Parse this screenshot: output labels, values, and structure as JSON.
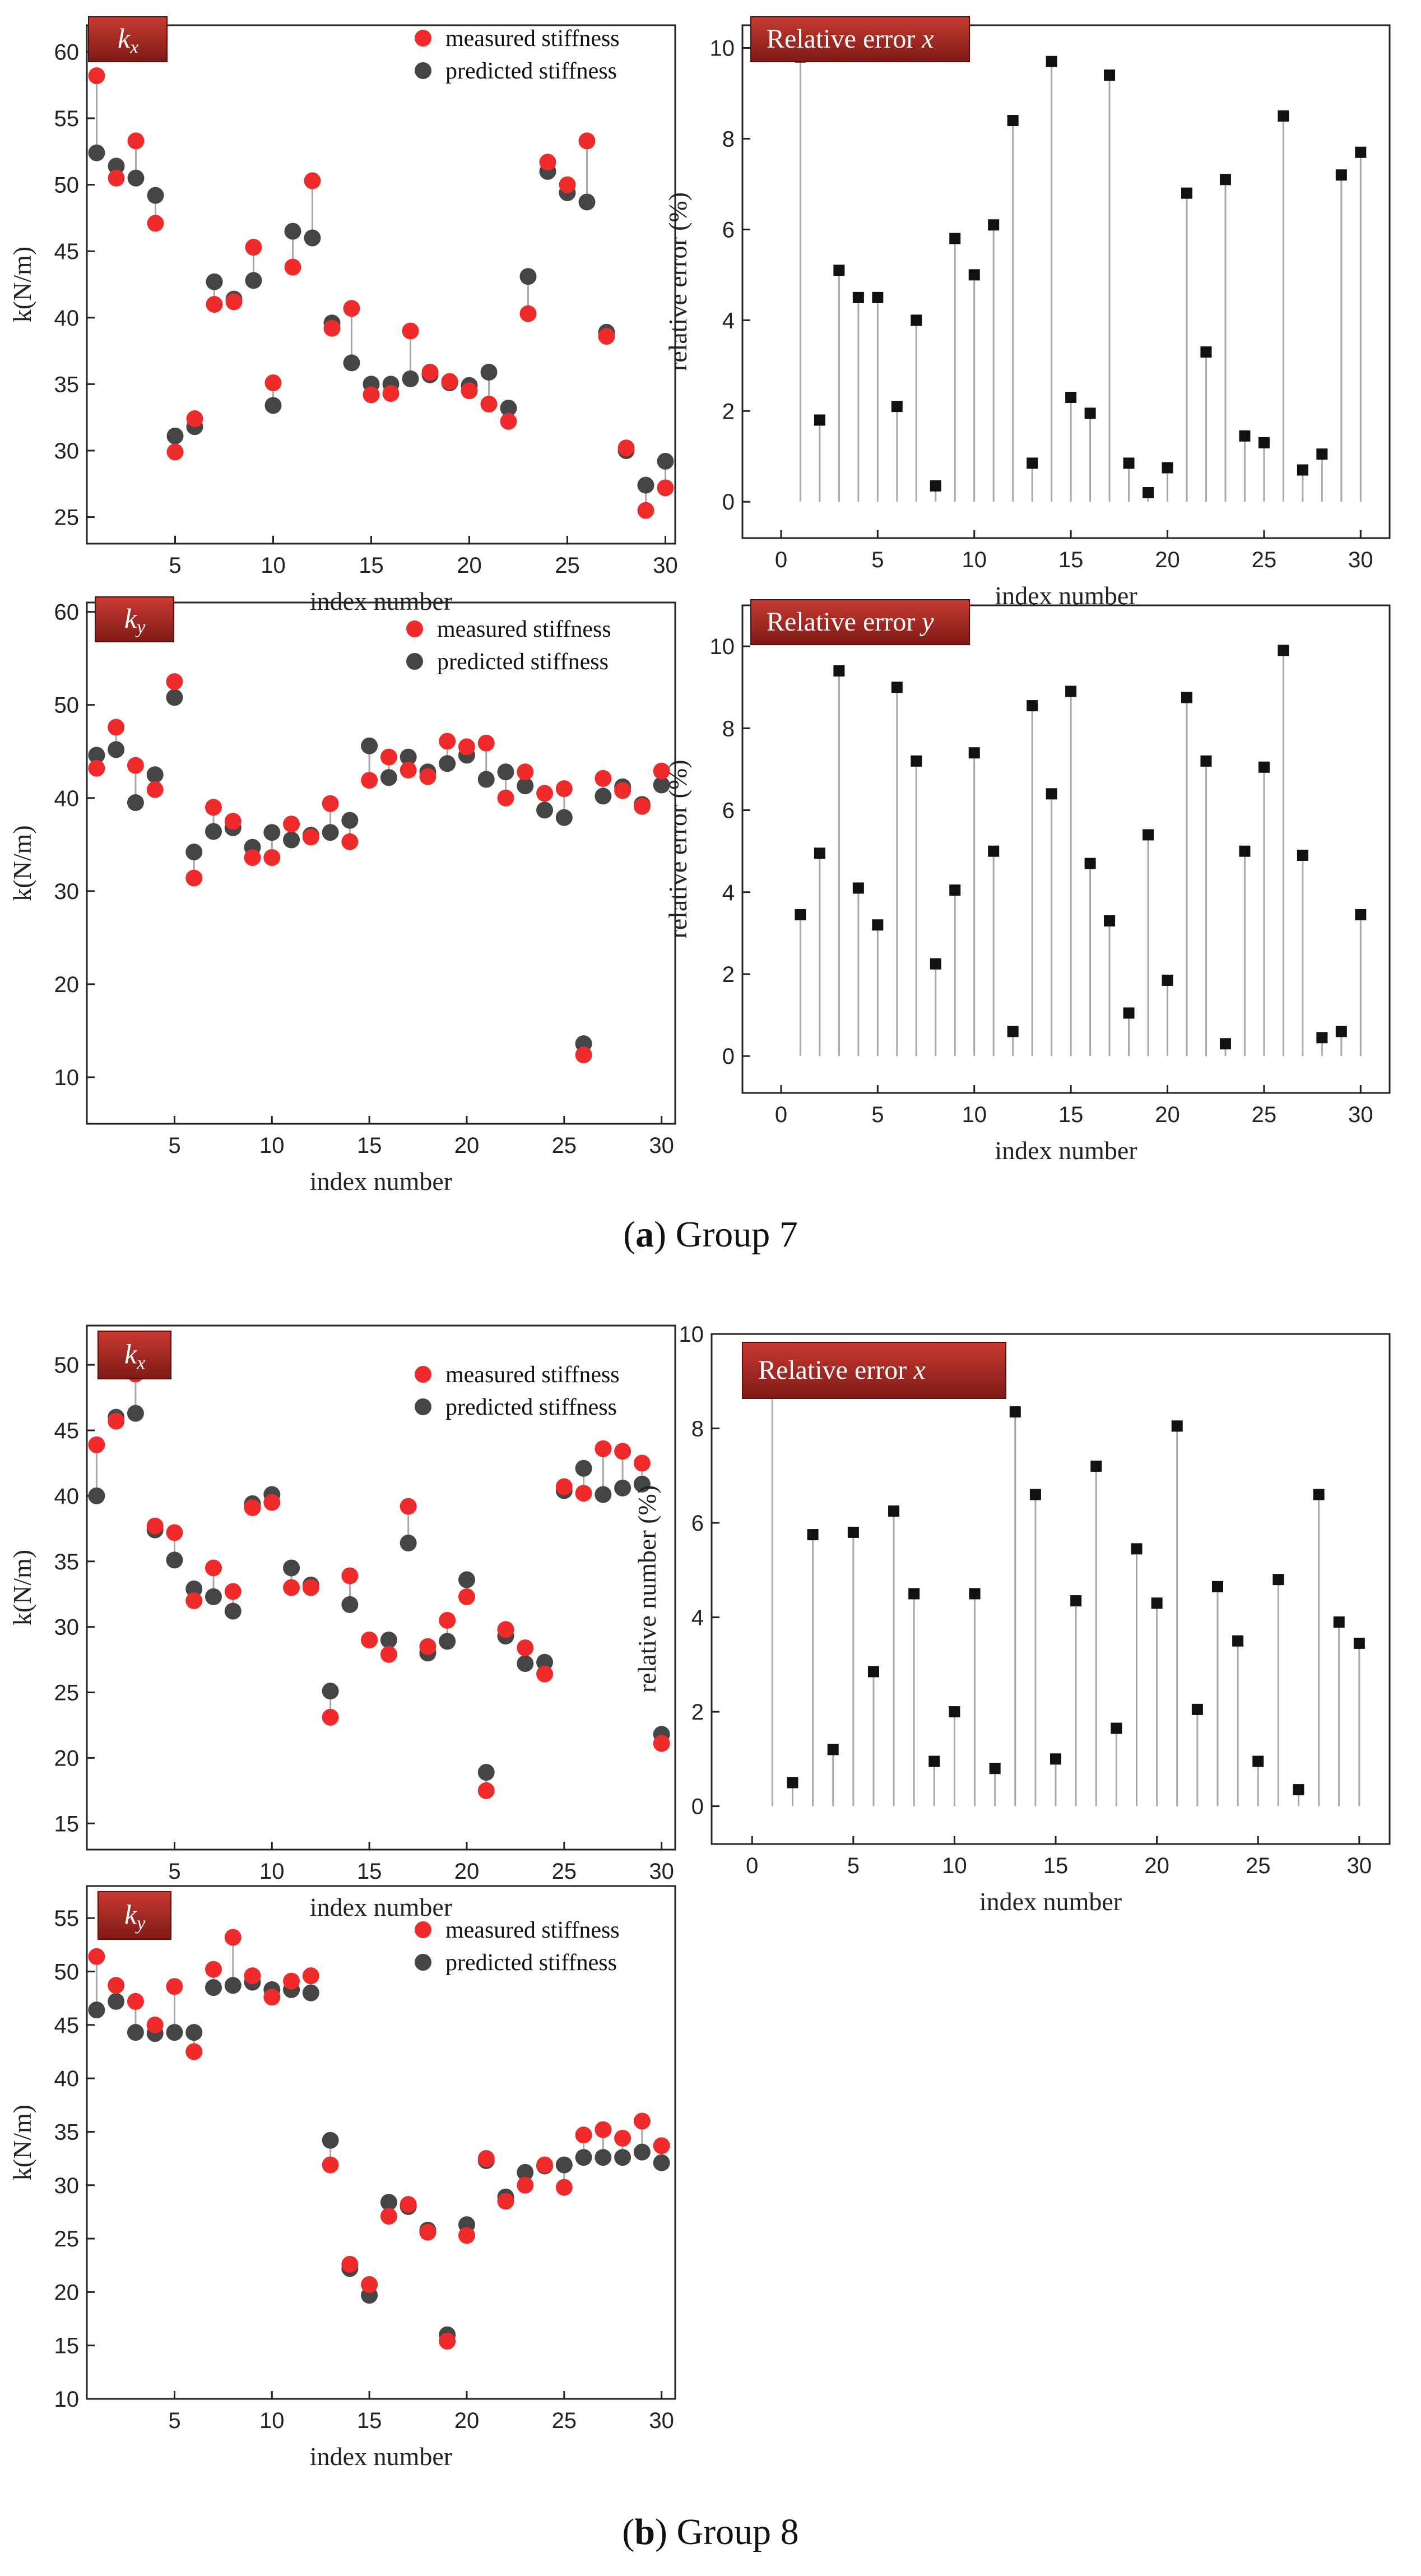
{
  "captions": {
    "a_label": "a",
    "a_text": "Group 7",
    "b_label": "b",
    "b_text": "Group 8"
  },
  "colors": {
    "measured": "#ee2a2a",
    "predicted": "#454545",
    "badge_start": "#c83a32",
    "badge_end": "#7e1a16",
    "stem": "#a9a9a9",
    "axis": "#222222"
  },
  "chart_data": [
    {
      "type": "scatter",
      "panel": "group7-kx-stiffness",
      "badge": "kx",
      "badge_main": "k",
      "badge_sub": "x",
      "title": "",
      "xlabel": "index number",
      "ylabel": "k(N/m)",
      "xlim": [
        0.5,
        30.5
      ],
      "ylim": [
        23,
        62
      ],
      "xticks": [
        5,
        10,
        15,
        20,
        25,
        30
      ],
      "yticks": [
        25,
        30,
        35,
        40,
        45,
        50,
        55,
        60
      ],
      "legend": [
        "measured stiffness",
        "predicted stiffness"
      ],
      "x": [
        1,
        2,
        3,
        4,
        5,
        6,
        7,
        8,
        9,
        10,
        11,
        12,
        13,
        14,
        15,
        16,
        17,
        18,
        19,
        20,
        21,
        22,
        23,
        24,
        25,
        26,
        27,
        28,
        29,
        30
      ],
      "series": [
        {
          "name": "measured stiffness",
          "values": [
            58.2,
            50.5,
            53.3,
            47.1,
            29.9,
            32.4,
            41.0,
            41.2,
            45.3,
            35.1,
            43.8,
            50.3,
            39.2,
            40.7,
            34.2,
            34.3,
            39.0,
            35.9,
            35.2,
            34.5,
            33.5,
            32.2,
            40.3,
            51.7,
            50.0,
            53.3,
            38.6,
            30.2,
            25.5,
            27.2
          ]
        },
        {
          "name": "predicted stiffness",
          "values": [
            52.4,
            51.4,
            50.5,
            49.2,
            31.1,
            31.8,
            42.7,
            41.4,
            42.8,
            33.4,
            46.5,
            46.0,
            39.6,
            36.6,
            35.0,
            35.0,
            35.4,
            35.7,
            35.1,
            34.9,
            35.9,
            33.2,
            43.1,
            51.0,
            49.4,
            48.7,
            38.9,
            30.0,
            27.4,
            29.2
          ]
        }
      ]
    },
    {
      "type": "stem",
      "panel": "group7-relative-error-x",
      "badge": "Relative error x",
      "badge_main": "Relative error ",
      "badge_sub": "x",
      "title": "",
      "xlabel": "index number",
      "ylabel": "relative error (%)",
      "xlim": [
        -2,
        31.5
      ],
      "ylim": [
        -0.8,
        10.5
      ],
      "xticks": [
        0,
        5,
        10,
        15,
        20,
        25,
        30
      ],
      "yticks": [
        0,
        2,
        4,
        6,
        8,
        10
      ],
      "x": [
        1,
        2,
        3,
        4,
        5,
        6,
        7,
        8,
        9,
        10,
        11,
        12,
        13,
        14,
        15,
        16,
        17,
        18,
        19,
        20,
        21,
        22,
        23,
        24,
        25,
        26,
        27,
        28,
        29,
        30
      ],
      "values": [
        9.8,
        1.8,
        5.1,
        4.5,
        4.5,
        2.1,
        4.0,
        0.35,
        5.8,
        5.0,
        6.1,
        8.4,
        0.85,
        9.7,
        2.3,
        1.95,
        9.4,
        0.85,
        0.2,
        0.75,
        6.8,
        3.3,
        7.1,
        1.45,
        1.3,
        8.5,
        0.7,
        1.05,
        7.2,
        7.7
      ]
    },
    {
      "type": "scatter",
      "panel": "group7-ky-stiffness",
      "badge": "ky",
      "badge_main": "k",
      "badge_sub": "y",
      "title": "",
      "xlabel": "index number",
      "ylabel": "k(N/m)",
      "xlim": [
        0.5,
        30.7
      ],
      "ylim": [
        5,
        61
      ],
      "xticks": [
        5,
        10,
        15,
        20,
        25,
        30
      ],
      "yticks": [
        10,
        20,
        30,
        40,
        50,
        60
      ],
      "legend": [
        "measured stiffness",
        "predicted stiffness"
      ],
      "x": [
        1,
        2,
        3,
        4,
        5,
        6,
        7,
        8,
        9,
        10,
        11,
        12,
        13,
        14,
        15,
        16,
        17,
        18,
        19,
        20,
        21,
        22,
        23,
        24,
        25,
        26,
        27,
        28,
        29,
        30
      ],
      "series": [
        {
          "name": "measured stiffness",
          "values": [
            43.2,
            47.6,
            43.5,
            40.9,
            52.5,
            31.4,
            39.0,
            37.5,
            33.6,
            33.6,
            37.2,
            35.8,
            39.4,
            35.3,
            41.9,
            44.4,
            43.0,
            42.3,
            46.1,
            45.5,
            45.9,
            40.0,
            42.8,
            40.5,
            41.0,
            12.4,
            42.1,
            40.8,
            39.1,
            42.9
          ]
        },
        {
          "name": "predicted stiffness",
          "values": [
            44.6,
            45.2,
            39.5,
            42.5,
            50.8,
            34.2,
            36.4,
            36.8,
            34.7,
            36.3,
            35.5,
            36.0,
            36.3,
            37.6,
            45.6,
            42.2,
            44.4,
            42.8,
            43.7,
            44.6,
            42.0,
            42.8,
            41.3,
            38.7,
            37.9,
            13.6,
            40.2,
            41.2,
            39.3,
            41.4
          ]
        }
      ]
    },
    {
      "type": "stem",
      "panel": "group7-relative-error-y",
      "badge": "Relative error y",
      "badge_main": "Relative error ",
      "badge_sub": "y",
      "title": "",
      "xlabel": "index number",
      "ylabel": "relative error (%)",
      "xlim": [
        -2,
        31.5
      ],
      "ylim": [
        -0.9,
        11
      ],
      "xticks": [
        0,
        5,
        10,
        15,
        20,
        25,
        30
      ],
      "yticks": [
        0,
        2,
        4,
        6,
        8,
        10
      ],
      "x": [
        1,
        2,
        3,
        4,
        5,
        6,
        7,
        8,
        9,
        10,
        11,
        12,
        13,
        14,
        15,
        16,
        17,
        18,
        19,
        20,
        21,
        22,
        23,
        24,
        25,
        26,
        27,
        28,
        29,
        30
      ],
      "values": [
        3.45,
        4.95,
        9.4,
        4.1,
        3.2,
        9.0,
        7.2,
        2.25,
        4.05,
        7.4,
        5.0,
        0.6,
        8.55,
        6.4,
        8.9,
        4.7,
        3.3,
        1.05,
        5.4,
        1.85,
        8.75,
        7.2,
        0.3,
        5.0,
        7.05,
        9.9,
        4.9,
        0.45,
        0.6,
        3.45
      ]
    },
    {
      "type": "scatter",
      "panel": "group8-kx-stiffness",
      "badge": "kx",
      "badge_main": "k",
      "badge_sub": "x",
      "title": "",
      "xlabel": "index number",
      "ylabel": "k(N/m)",
      "xlim": [
        0.5,
        30.7
      ],
      "ylim": [
        13,
        53
      ],
      "xticks": [
        5,
        10,
        15,
        20,
        25,
        30
      ],
      "yticks": [
        15,
        20,
        25,
        30,
        35,
        40,
        45,
        50
      ],
      "legend": [
        "measured stiffness",
        "predicted stiffness"
      ],
      "x": [
        1,
        2,
        3,
        4,
        5,
        6,
        7,
        8,
        9,
        10,
        11,
        12,
        13,
        14,
        15,
        16,
        17,
        18,
        19,
        20,
        21,
        22,
        23,
        24,
        25,
        26,
        27,
        28,
        29,
        30
      ],
      "series": [
        {
          "name": "measured stiffness",
          "values": [
            43.9,
            45.7,
            49.3,
            37.7,
            37.2,
            32.0,
            34.5,
            32.7,
            39.1,
            39.5,
            33.0,
            33.0,
            23.1,
            33.9,
            29.0,
            27.9,
            39.2,
            28.5,
            30.5,
            32.3,
            17.5,
            29.8,
            28.4,
            26.4,
            40.7,
            40.2,
            43.6,
            43.4,
            42.5,
            21.1
          ]
        },
        {
          "name": "predicted stiffness",
          "values": [
            40.0,
            46.0,
            46.3,
            37.4,
            35.1,
            32.9,
            32.3,
            31.2,
            39.4,
            40.1,
            34.5,
            33.2,
            25.1,
            31.7,
            29.0,
            29.0,
            36.4,
            28.0,
            28.9,
            33.6,
            18.9,
            29.3,
            27.2,
            27.3,
            40.4,
            42.1,
            40.1,
            40.6,
            40.9,
            21.8
          ]
        }
      ]
    },
    {
      "type": "stem",
      "panel": "group8-relative-error-x",
      "badge": "Relative error x",
      "badge_main": "Relative error ",
      "badge_sub": "x",
      "title": "",
      "xlabel": "index number",
      "ylabel": "relative number (%)",
      "xlim": [
        -2,
        31.5
      ],
      "ylim": [
        -0.8,
        10
      ],
      "xticks": [
        0,
        5,
        10,
        15,
        20,
        25,
        30
      ],
      "yticks": [
        0,
        2,
        4,
        6,
        8,
        10
      ],
      "x": [
        1,
        2,
        3,
        4,
        5,
        6,
        7,
        8,
        9,
        10,
        11,
        12,
        13,
        14,
        15,
        16,
        17,
        18,
        19,
        20,
        21,
        22,
        23,
        24,
        25,
        26,
        27,
        28,
        29,
        30
      ],
      "values": [
        9.0,
        0.5,
        5.75,
        1.2,
        5.8,
        2.85,
        6.25,
        4.5,
        0.95,
        2.0,
        4.5,
        0.8,
        8.35,
        6.6,
        1.0,
        4.35,
        7.2,
        1.65,
        5.45,
        4.3,
        8.05,
        2.05,
        4.65,
        3.5,
        0.95,
        4.8,
        0.35,
        6.6,
        3.9,
        3.45
      ]
    },
    {
      "type": "scatter",
      "panel": "group8-ky-stiffness",
      "badge": "ky",
      "badge_main": "k",
      "badge_sub": "y",
      "title": "",
      "xlabel": "index number",
      "ylabel": "k(N/m)",
      "xlim": [
        0.5,
        30.7
      ],
      "ylim": [
        10,
        58
      ],
      "xticks": [
        5,
        10,
        15,
        20,
        25,
        30
      ],
      "yticks": [
        10,
        15,
        20,
        25,
        30,
        35,
        40,
        45,
        50,
        55
      ],
      "legend": [
        "measured stiffness",
        "predicted stiffness"
      ],
      "x": [
        1,
        2,
        3,
        4,
        5,
        6,
        7,
        8,
        9,
        10,
        11,
        12,
        13,
        14,
        15,
        16,
        17,
        18,
        19,
        20,
        21,
        22,
        23,
        24,
        25,
        26,
        27,
        28,
        29,
        30
      ],
      "series": [
        {
          "name": "measured stiffness",
          "values": [
            51.4,
            48.7,
            47.2,
            45.0,
            48.6,
            42.5,
            50.2,
            53.2,
            49.6,
            47.6,
            49.1,
            49.6,
            31.9,
            22.6,
            20.7,
            27.1,
            28.2,
            25.6,
            15.4,
            25.3,
            32.5,
            28.5,
            30.0,
            31.9,
            29.8,
            34.7,
            35.2,
            34.4,
            36.0,
            33.7
          ]
        },
        {
          "name": "predicted stiffness",
          "values": [
            46.4,
            47.2,
            44.3,
            44.2,
            44.3,
            44.3,
            48.5,
            48.7,
            49.0,
            48.3,
            48.3,
            48.0,
            34.2,
            22.2,
            19.7,
            28.4,
            28.0,
            25.8,
            16.0,
            26.3,
            32.3,
            28.9,
            31.2,
            31.8,
            31.9,
            32.6,
            32.6,
            32.6,
            33.1,
            32.1
          ]
        }
      ]
    }
  ]
}
